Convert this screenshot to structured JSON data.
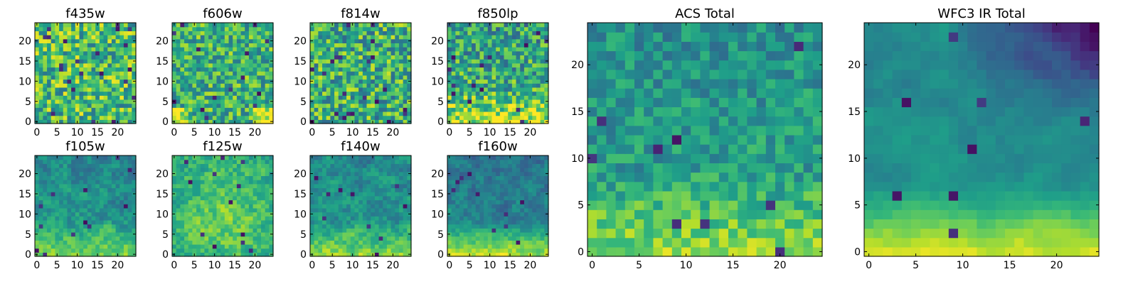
{
  "figure": {
    "colormap": "viridis",
    "background": "#ffffff"
  },
  "chart_data": [
    {
      "type": "heatmap",
      "title": "f435w",
      "grid": [
        25,
        25
      ],
      "xlim": [
        0,
        24
      ],
      "ylim": [
        0,
        24
      ],
      "xticks": [
        "0",
        "5",
        "10",
        "15",
        "20"
      ],
      "yticks": [
        "0",
        "5",
        "10",
        "15",
        "20"
      ],
      "value_range": [
        0,
        1
      ],
      "seed": 11,
      "noise": 0.3,
      "smooth": 0.0,
      "gradient": "none",
      "dark_spots": 22,
      "level": 0.68
    },
    {
      "type": "heatmap",
      "title": "f606w",
      "grid": [
        25,
        25
      ],
      "xlim": [
        0,
        24
      ],
      "ylim": [
        0,
        24
      ],
      "xticks": [
        "0",
        "5",
        "10",
        "15",
        "20"
      ],
      "yticks": [
        "0",
        "5",
        "10",
        "15",
        "20"
      ],
      "value_range": [
        0,
        1
      ],
      "seed": 23,
      "noise": 0.26,
      "smooth": 0.0,
      "gradient": "bottom-corners",
      "dark_spots": 14,
      "level": 0.64
    },
    {
      "type": "heatmap",
      "title": "f814w",
      "grid": [
        25,
        25
      ],
      "xlim": [
        0,
        24
      ],
      "ylim": [
        0,
        24
      ],
      "xticks": [
        "0",
        "5",
        "10",
        "15",
        "20"
      ],
      "yticks": [
        "0",
        "5",
        "10",
        "15",
        "20"
      ],
      "value_range": [
        0,
        1
      ],
      "seed": 37,
      "noise": 0.3,
      "smooth": 0.0,
      "gradient": "none",
      "dark_spots": 22,
      "level": 0.63
    },
    {
      "type": "heatmap",
      "title": "f850lp",
      "grid": [
        25,
        25
      ],
      "xlim": [
        0,
        24
      ],
      "ylim": [
        0,
        24
      ],
      "xticks": [
        "0",
        "5",
        "10",
        "15",
        "20"
      ],
      "yticks": [
        "0",
        "5",
        "10",
        "15",
        "20"
      ],
      "value_range": [
        0,
        1
      ],
      "seed": 41,
      "noise": 0.28,
      "smooth": 0.0,
      "gradient": "bottom",
      "dark_spots": 14,
      "level": 0.64
    },
    {
      "type": "heatmap",
      "title": "f105w",
      "grid": [
        25,
        25
      ],
      "xlim": [
        0,
        24
      ],
      "ylim": [
        0,
        24
      ],
      "xticks": [
        "0",
        "5",
        "10",
        "15",
        "20"
      ],
      "yticks": [
        "0",
        "5",
        "10",
        "15",
        "20"
      ],
      "value_range": [
        0,
        1
      ],
      "seed": 53,
      "noise": 0.22,
      "smooth": 0.55,
      "gradient": "bottom",
      "dark_spots": 12,
      "level": 0.55
    },
    {
      "type": "heatmap",
      "title": "f125w",
      "grid": [
        25,
        25
      ],
      "xlim": [
        0,
        24
      ],
      "ylim": [
        0,
        24
      ],
      "xticks": [
        "0",
        "5",
        "10",
        "15",
        "20"
      ],
      "yticks": [
        "0",
        "5",
        "10",
        "15",
        "20"
      ],
      "value_range": [
        0,
        1
      ],
      "seed": 67,
      "noise": 0.22,
      "smooth": 0.5,
      "gradient": "center",
      "dark_spots": 12,
      "level": 0.64
    },
    {
      "type": "heatmap",
      "title": "f140w",
      "grid": [
        25,
        25
      ],
      "xlim": [
        0,
        24
      ],
      "ylim": [
        0,
        24
      ],
      "xticks": [
        "0",
        "5",
        "10",
        "15",
        "20"
      ],
      "yticks": [
        "0",
        "5",
        "10",
        "15",
        "20"
      ],
      "value_range": [
        0,
        1
      ],
      "seed": 71,
      "noise": 0.22,
      "smooth": 0.55,
      "gradient": "bottom",
      "dark_spots": 10,
      "level": 0.55
    },
    {
      "type": "heatmap",
      "title": "f160w",
      "grid": [
        25,
        25
      ],
      "xlim": [
        0,
        24
      ],
      "ylim": [
        0,
        24
      ],
      "xticks": [
        "0",
        "5",
        "10",
        "15",
        "20"
      ],
      "yticks": [
        "0",
        "5",
        "10",
        "15",
        "20"
      ],
      "value_range": [
        0,
        1
      ],
      "seed": 83,
      "noise": 0.2,
      "smooth": 0.6,
      "gradient": "bottom-strong",
      "dark_spots": 10,
      "level": 0.5
    },
    {
      "type": "heatmap",
      "title": "ACS Total",
      "grid": [
        25,
        25
      ],
      "xlim": [
        0,
        24
      ],
      "ylim": [
        0,
        24
      ],
      "xticks": [
        "0",
        "5",
        "10",
        "15",
        "20"
      ],
      "yticks": [
        "0",
        "5",
        "10",
        "15",
        "20"
      ],
      "value_range": [
        0,
        1
      ],
      "seed": 97,
      "noise": 0.18,
      "smooth": 0.15,
      "gradient": "bottom",
      "dark_spots": 9,
      "level": 0.58
    },
    {
      "type": "heatmap",
      "title": "WFC3 IR Total",
      "grid": [
        25,
        25
      ],
      "xlim": [
        0,
        24
      ],
      "ylim": [
        0,
        24
      ],
      "xticks": [
        "0",
        "5",
        "10",
        "15",
        "20"
      ],
      "yticks": [
        "0",
        "5",
        "10",
        "15",
        "20"
      ],
      "value_range": [
        0,
        1
      ],
      "seed": 101,
      "noise": 0.12,
      "smooth": 0.75,
      "gradient": "bottom-strong-topright-dark",
      "dark_spots": 8,
      "level": 0.52
    }
  ]
}
